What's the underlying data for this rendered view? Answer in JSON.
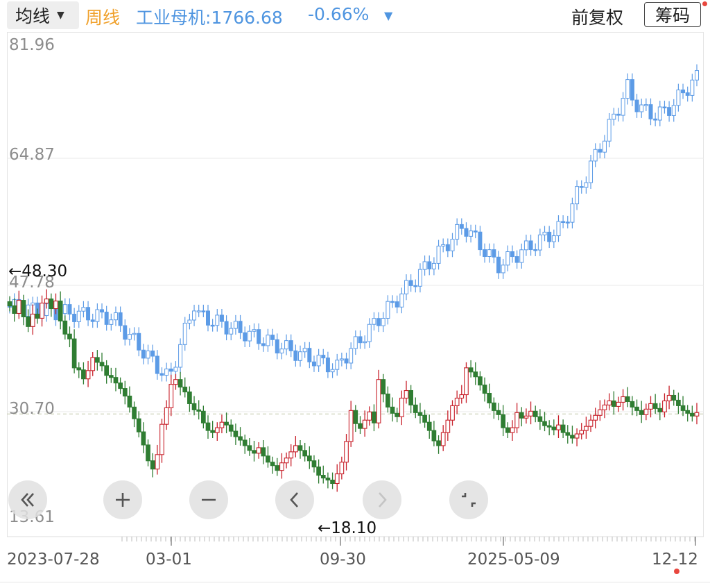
{
  "topbar": {
    "ma_label": "均线",
    "period_label": "周线",
    "index_name_value": "工业母机:1766.68",
    "index_change": "-0.66%",
    "adjust_label": "前复权",
    "chip_label": "筹码"
  },
  "colors": {
    "price_up": "#c8202a",
    "price_down": "#2f7d32",
    "index_line": "#5c9be6",
    "period_accent": "#f0a12c",
    "notify_dot": "#e8473e",
    "grid": "#e8e8e8",
    "ref_line": "#c8cbb0"
  },
  "icons": {
    "ma_dropdown": "caret-down-icon",
    "index_change": "triangle-down-icon",
    "zoom_controls": [
      "double-chevron-left-icon",
      "plus-icon",
      "minus-icon",
      "chevron-left-icon",
      "chevron-right-icon",
      "fullscreen-exit-icon"
    ]
  },
  "chart_data": {
    "type": "candlestick",
    "y_labels": [
      "81.96",
      "64.87",
      "47.78",
      "30.70",
      "13.61"
    ],
    "ylim": [
      13.61,
      81.96
    ],
    "x_labels": [
      "2023-07-28",
      "03-01",
      "09-30",
      "2025-05-09",
      "12-12"
    ],
    "high_marker": "←48.30",
    "low_marker": "←18.10",
    "reference_price": 28.5,
    "grid": true,
    "stock_closes": [
      44.2,
      43.1,
      45.0,
      42.6,
      41.2,
      43.0,
      42.4,
      44.6,
      45.2,
      43.8,
      44.9,
      42.0,
      40.1,
      39.4,
      35.2,
      34.9,
      33.6,
      34.8,
      36.7,
      36.0,
      35.5,
      34.1,
      33.8,
      33.0,
      32.2,
      31.1,
      29.5,
      27.8,
      25.9,
      24.0,
      21.7,
      20.5,
      22.6,
      27.0,
      29.4,
      32.8,
      33.5,
      32.4,
      31.7,
      30.0,
      29.1,
      28.9,
      27.2,
      26.1,
      25.8,
      26.5,
      27.3,
      26.9,
      26.0,
      25.2,
      24.7,
      23.9,
      23.2,
      22.8,
      23.6,
      22.4,
      21.5,
      21.0,
      20.3,
      21.4,
      22.1,
      23.0,
      23.9,
      23.2,
      22.4,
      21.7,
      20.8,
      19.6,
      19.2,
      18.9,
      18.4,
      19.8,
      21.5,
      24.5,
      29.0,
      27.1,
      26.4,
      27.6,
      28.8,
      27.2,
      33.5,
      31.4,
      29.5,
      28.6,
      28.1,
      30.8,
      31.9,
      29.8,
      28.7,
      28.3,
      27.3,
      26.1,
      24.6,
      23.9,
      25.8,
      27.6,
      29.7,
      30.8,
      31.3,
      35.2,
      34.6,
      33.9,
      32.7,
      31.5,
      30.1,
      29.0,
      28.4,
      26.5,
      25.8,
      26.5,
      28.7,
      27.9,
      28.2,
      28.9,
      28.1,
      27.4,
      26.8,
      26.6,
      26.2,
      26.9,
      25.8,
      25.4,
      25.0,
      25.6,
      26.1,
      26.7,
      27.6,
      28.3,
      29.1,
      29.8,
      30.4,
      29.6,
      30.2,
      31.0,
      30.3,
      29.5,
      29.0,
      28.4,
      29.2,
      30.0,
      29.3,
      28.8,
      30.4,
      31.2,
      30.5,
      29.7,
      29.0,
      28.6,
      28.2,
      28.7
    ]
  }
}
